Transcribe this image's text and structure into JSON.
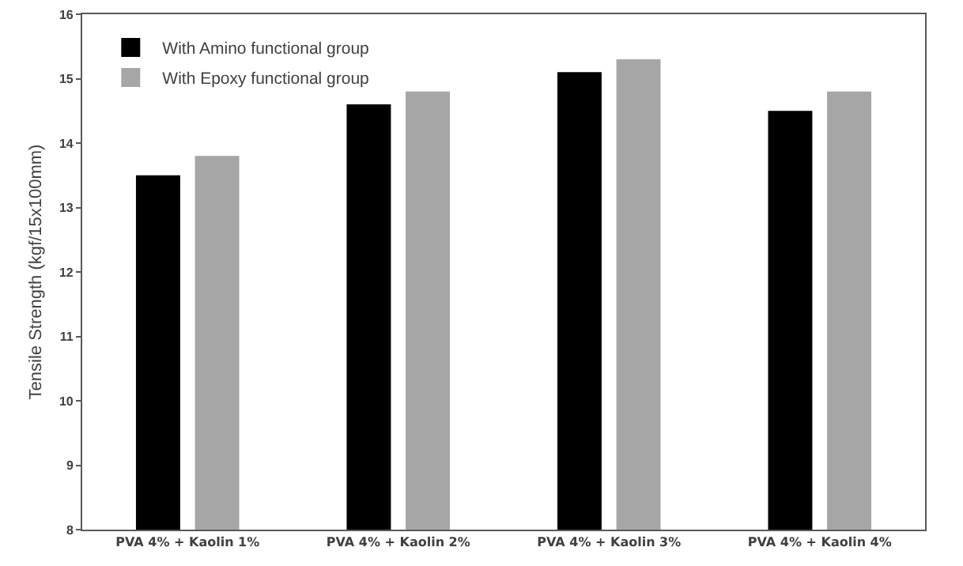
{
  "chart_data": {
    "type": "bar",
    "ylabel": "Tensile Strength (kgf/15x100mm)",
    "categories": [
      "PVA 4% + Kaolin 1%",
      "PVA 4% + Kaolin 2%",
      "PVA 4% + Kaolin 3%",
      "PVA 4% + Kaolin 4%"
    ],
    "series": [
      {
        "name": "With Amino functional group",
        "color": "#000000",
        "values": [
          13.5,
          14.6,
          15.1,
          14.5
        ]
      },
      {
        "name": "With Epoxy functional group",
        "color": "#a6a6a6",
        "values": [
          13.8,
          14.8,
          15.3,
          14.8
        ]
      }
    ],
    "ylim": [
      8,
      16
    ],
    "yticks": [
      8,
      9,
      10,
      11,
      12,
      13,
      14,
      15,
      16
    ],
    "grid": false,
    "legend": "top left"
  }
}
